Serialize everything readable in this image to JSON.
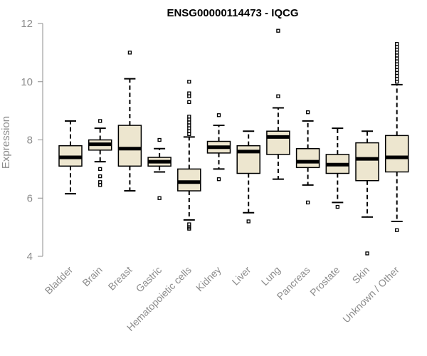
{
  "colors": {
    "box_fill": "#ede6cf",
    "stroke": "#000000",
    "axis": "#8c8c8c",
    "text_muted": "#8c8c8c"
  },
  "chart_data": {
    "type": "boxplot",
    "title": "ENSG00000114473 - IQCG",
    "xlabel": "",
    "ylabel": "Expression",
    "ylim": [
      4,
      12
    ],
    "yticks": [
      4,
      6,
      8,
      10,
      12
    ],
    "categories": [
      "Bladder",
      "Brain",
      "Breast",
      "Gastric",
      "Hematopoietic cells",
      "Kidney",
      "Liver",
      "Lung",
      "Pancreas",
      "Prostate",
      "Skin",
      "Unknown / Other"
    ],
    "boxes": [
      {
        "name": "Bladder",
        "whisker_low": 6.15,
        "q1": 7.1,
        "median": 7.4,
        "q3": 7.8,
        "whisker_high": 8.65,
        "outliers": []
      },
      {
        "name": "Brain",
        "whisker_low": 7.25,
        "q1": 7.65,
        "median": 7.85,
        "q3": 8.0,
        "whisker_high": 8.4,
        "outliers": [
          7.0,
          6.75,
          6.55,
          6.45,
          8.65
        ]
      },
      {
        "name": "Breast",
        "whisker_low": 6.25,
        "q1": 7.1,
        "median": 7.7,
        "q3": 8.5,
        "whisker_high": 10.1,
        "outliers": [
          11.0
        ]
      },
      {
        "name": "Gastric",
        "whisker_low": 6.9,
        "q1": 7.1,
        "median": 7.25,
        "q3": 7.4,
        "whisker_high": 7.7,
        "outliers": [
          8.0,
          6.0
        ]
      },
      {
        "name": "Hematopoietic cells",
        "whisker_low": 5.25,
        "q1": 6.25,
        "median": 6.55,
        "q3": 7.0,
        "whisker_high": 8.1,
        "outliers": [
          10.0,
          9.6,
          9.5,
          9.3,
          8.8,
          8.7,
          8.6,
          8.5,
          8.4,
          8.3,
          8.2,
          5.1,
          5.0,
          4.95
        ]
      },
      {
        "name": "Kidney",
        "whisker_low": 7.0,
        "q1": 7.55,
        "median": 7.75,
        "q3": 7.95,
        "whisker_high": 8.5,
        "outliers": [
          8.85,
          6.65
        ]
      },
      {
        "name": "Liver",
        "whisker_low": 5.5,
        "q1": 6.85,
        "median": 7.6,
        "q3": 7.8,
        "whisker_high": 8.3,
        "outliers": [
          5.2
        ]
      },
      {
        "name": "Lung",
        "whisker_low": 6.65,
        "q1": 7.5,
        "median": 8.1,
        "q3": 8.3,
        "whisker_high": 9.1,
        "outliers": [
          11.75,
          9.5
        ]
      },
      {
        "name": "Pancreas",
        "whisker_low": 6.45,
        "q1": 7.05,
        "median": 7.25,
        "q3": 7.7,
        "whisker_high": 8.65,
        "outliers": [
          8.95,
          5.85
        ]
      },
      {
        "name": "Prostate",
        "whisker_low": 5.85,
        "q1": 6.85,
        "median": 7.15,
        "q3": 7.5,
        "whisker_high": 8.4,
        "outliers": [
          5.7
        ]
      },
      {
        "name": "Skin",
        "whisker_low": 5.35,
        "q1": 6.6,
        "median": 7.35,
        "q3": 7.9,
        "whisker_high": 8.3,
        "outliers": [
          4.1
        ]
      },
      {
        "name": "Unknown / Other",
        "whisker_low": 5.2,
        "q1": 6.9,
        "median": 7.4,
        "q3": 8.15,
        "whisker_high": 9.9,
        "outliers": [
          11.3,
          11.2,
          11.1,
          11.0,
          10.9,
          10.8,
          10.7,
          10.6,
          10.5,
          10.4,
          10.3,
          10.2,
          10.1,
          10.0,
          4.9
        ]
      }
    ]
  }
}
